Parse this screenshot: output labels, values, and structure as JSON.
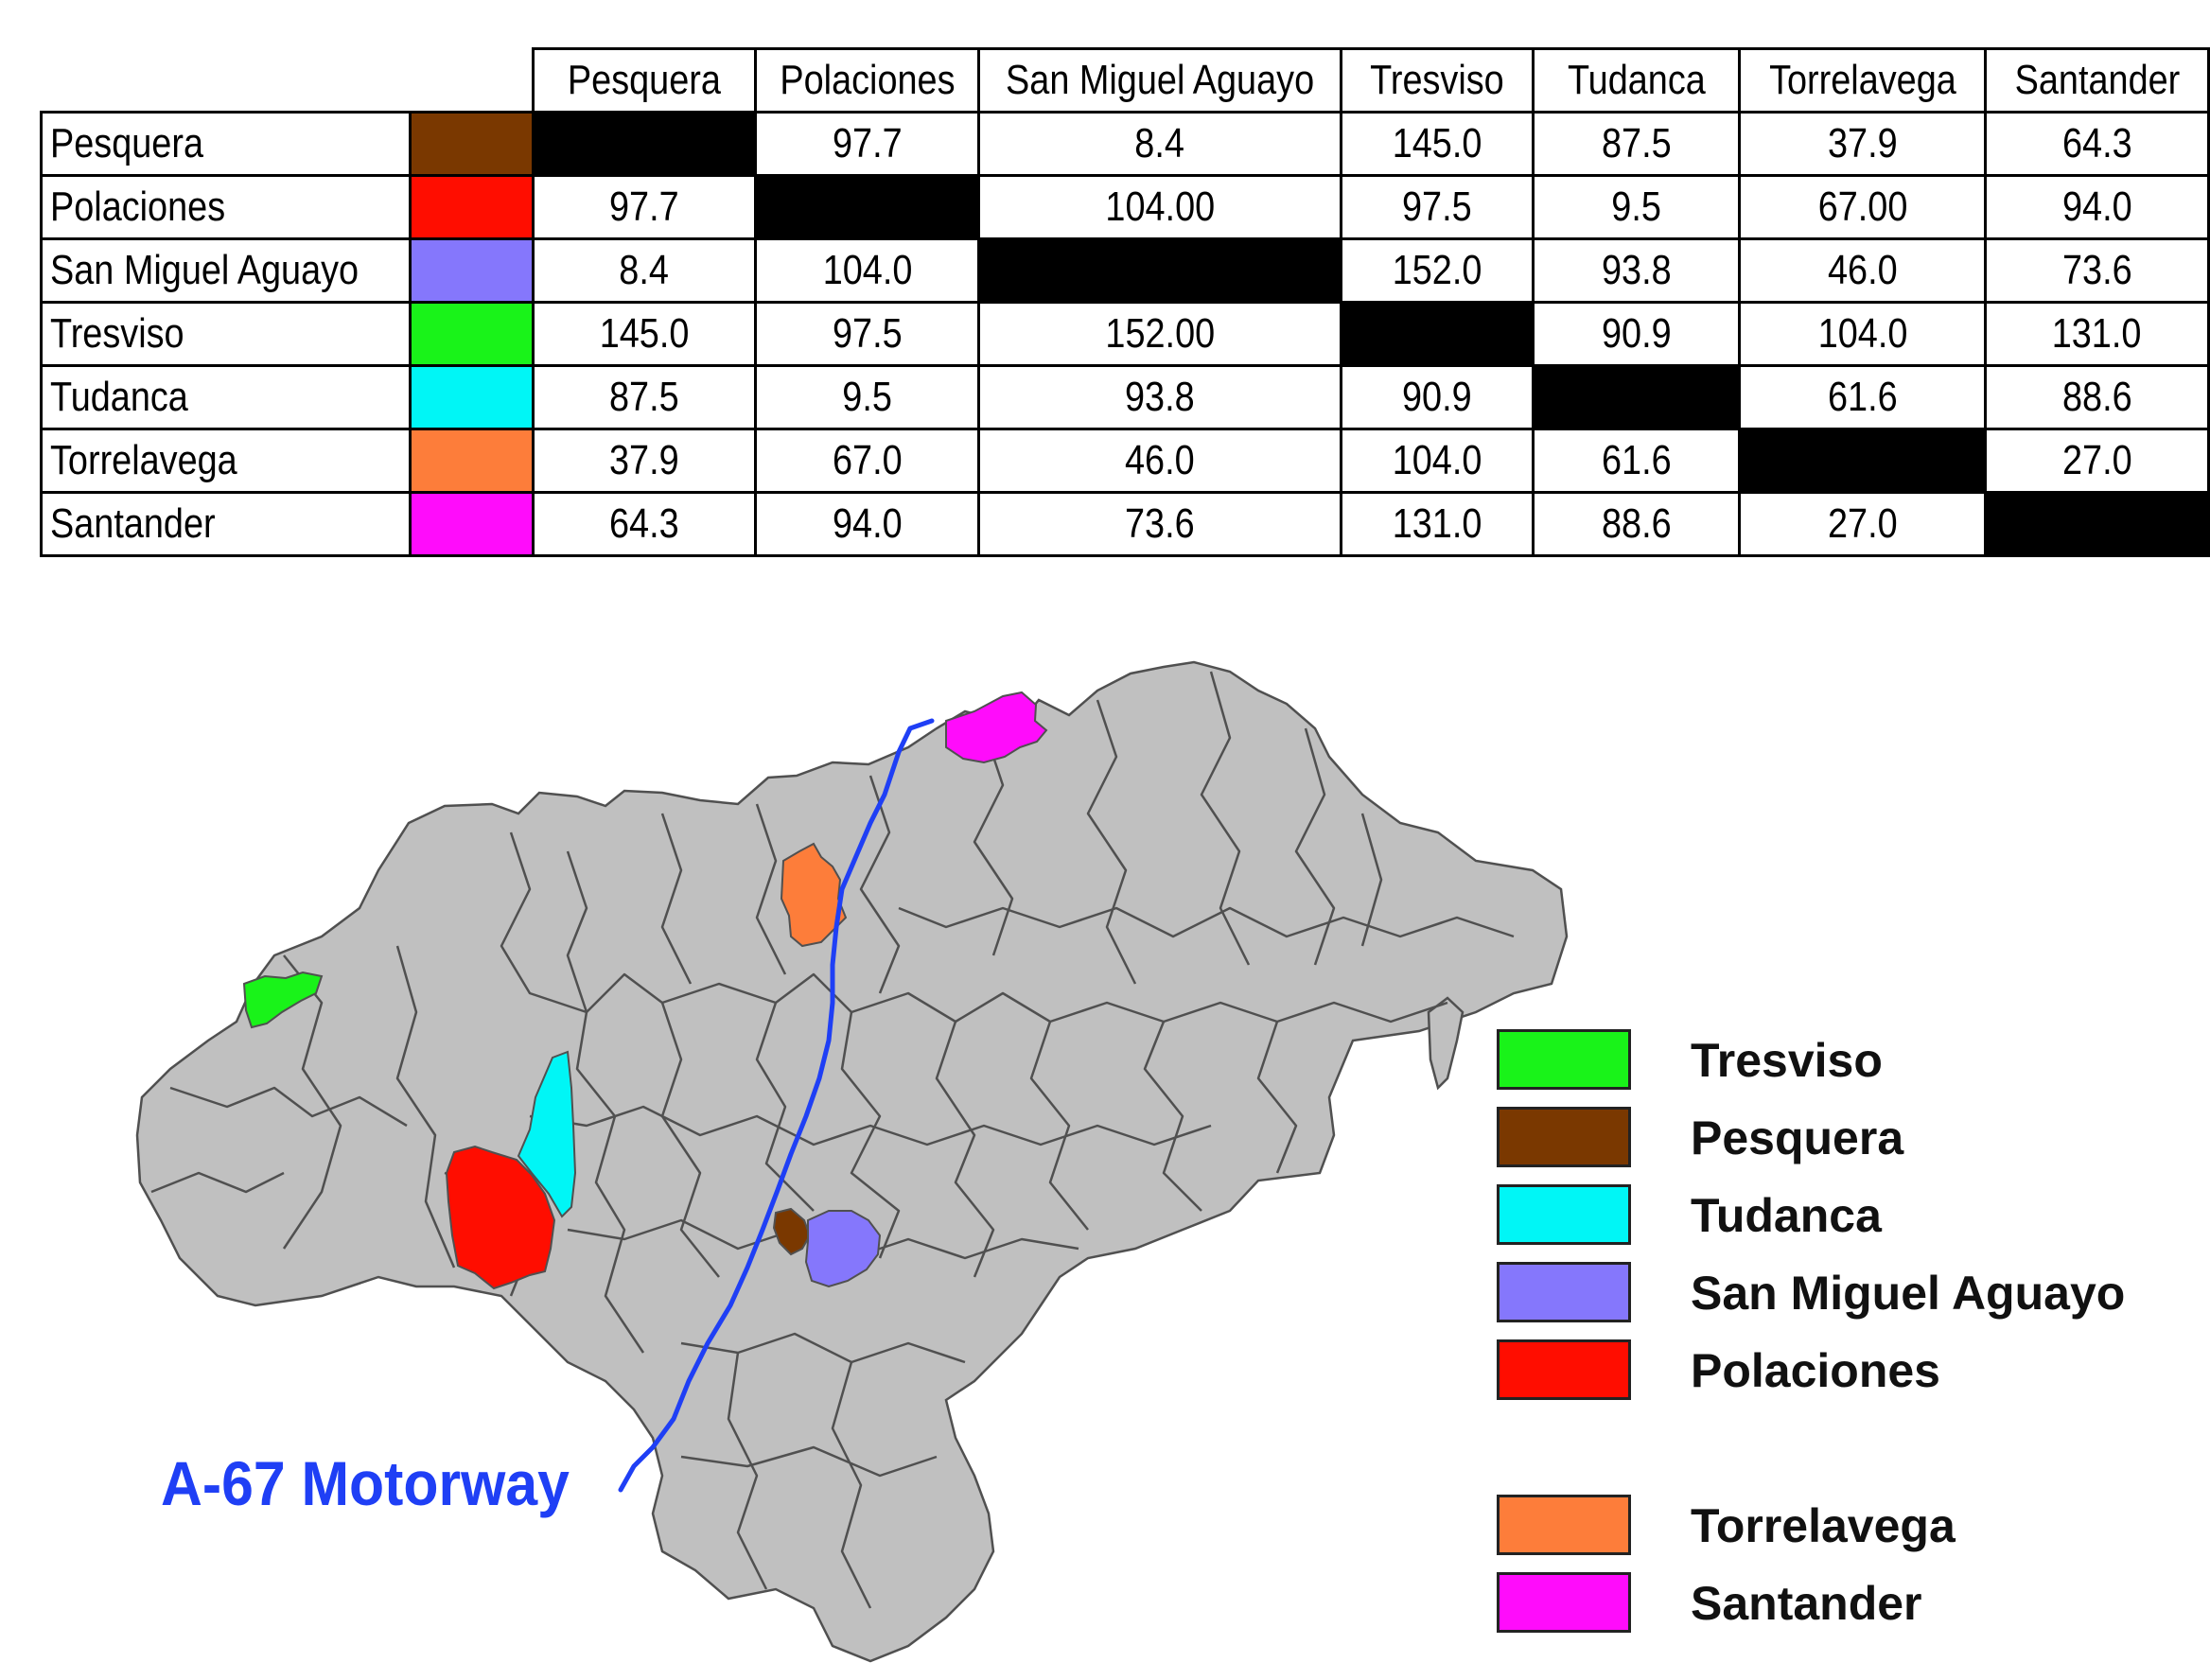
{
  "table": {
    "columns": [
      "Pesquera",
      "Polaciones",
      "San Miguel Aguayo",
      "Tresviso",
      "Tudanca",
      "Torrelavega",
      "Santander"
    ],
    "rows": [
      {
        "name": "Pesquera",
        "color": "#7a3800",
        "values": [
          "",
          "97.7",
          "8.4",
          "145.0",
          "87.5",
          "37.9",
          "64.3"
        ]
      },
      {
        "name": "Polaciones",
        "color": "#ff0d00",
        "values": [
          "97.7",
          "",
          "104.00",
          "97.5",
          "9.5",
          "67.00",
          "94.0"
        ]
      },
      {
        "name": "San Miguel Aguayo",
        "color": "#8577fc",
        "values": [
          "8.4",
          "104.0",
          "",
          "152.0",
          "93.8",
          "46.0",
          "73.6"
        ]
      },
      {
        "name": "Tresviso",
        "color": "#19f319",
        "values": [
          "145.0",
          "97.5",
          "152.00",
          "",
          "90.9",
          "104.0",
          "131.0"
        ]
      },
      {
        "name": "Tudanca",
        "color": "#00f6f6",
        "values": [
          "87.5",
          "9.5",
          "93.8",
          "90.9",
          "",
          "61.6",
          "88.6"
        ]
      },
      {
        "name": "Torrelavega",
        "color": "#fd7d3a",
        "values": [
          "37.9",
          "67.0",
          "46.0",
          "104.0",
          "61.6",
          "",
          "27.0"
        ]
      },
      {
        "name": "Santander",
        "color": "#ff0cfb",
        "values": [
          "64.3",
          "94.0",
          "73.6",
          "131.0",
          "88.6",
          "27.0",
          ""
        ]
      }
    ]
  },
  "map": {
    "land_color": "#c0c0c0",
    "border_color": "#505050",
    "motorway_color": "#1f3ff5",
    "motorway_label": "A-67 Motorway"
  },
  "legend": {
    "items": [
      {
        "label": "Tresviso",
        "color": "#19f319"
      },
      {
        "label": "Pesquera",
        "color": "#7a3800"
      },
      {
        "label": "Tudanca",
        "color": "#00f6f6"
      },
      {
        "label": "San Miguel Aguayo",
        "color": "#8577fc"
      },
      {
        "label": "Polaciones",
        "color": "#ff0d00"
      },
      {
        "label": "Torrelavega",
        "color": "#fd7d3a"
      },
      {
        "label": "Santander",
        "color": "#ff0cfb"
      }
    ]
  }
}
